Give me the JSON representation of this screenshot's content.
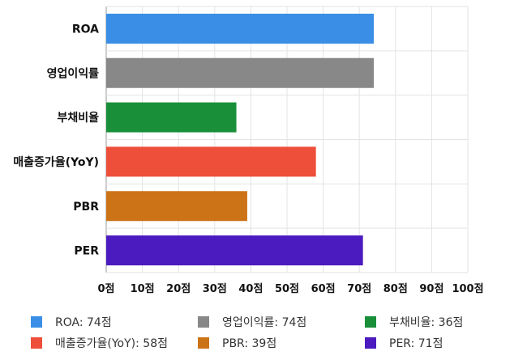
{
  "chart_data": {
    "type": "bar",
    "orientation": "horizontal",
    "categories": [
      "ROA",
      "영업이익률",
      "부채비율",
      "매출증가율(YoY)",
      "PBR",
      "PER"
    ],
    "values": [
      74,
      74,
      36,
      58,
      39,
      71
    ],
    "colors": [
      "#3a8ee6",
      "#888888",
      "#1a8f3a",
      "#ee4f3a",
      "#cc7318",
      "#4b1bbf"
    ],
    "xlim": [
      0,
      100
    ],
    "xticks": [
      "0점",
      "10점",
      "20점",
      "30점",
      "40점",
      "50점",
      "60점",
      "70점",
      "80점",
      "90점",
      "100점"
    ],
    "grid": true,
    "legend_position": "bottom",
    "legend": [
      "ROA: 74점",
      "영업이익률: 74점",
      "부채비율: 36점",
      "매출증가율(YoY): 58점",
      "PBR: 39점",
      "PER: 71점"
    ]
  }
}
